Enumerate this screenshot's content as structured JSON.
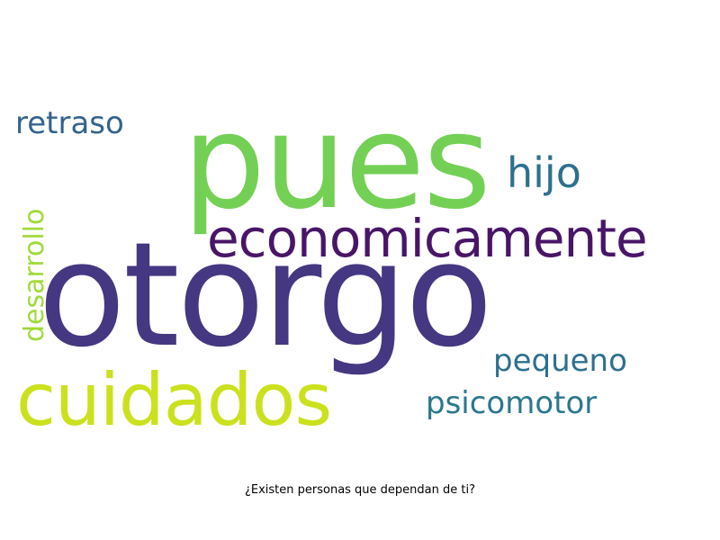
{
  "caption": "¿Existen personas que dependan de ti?",
  "words": [
    {
      "text": "pues",
      "color": "#73d055"
    },
    {
      "text": "otorgo",
      "color": "#453781"
    },
    {
      "text": "economicamente",
      "color": "#481567"
    },
    {
      "text": "cuidados",
      "color": "#cbe11e"
    },
    {
      "text": "hijo",
      "color": "#2d708e"
    },
    {
      "text": "retraso",
      "color": "#33638d"
    },
    {
      "text": "desarrollo",
      "color": "#a0da39"
    },
    {
      "text": "pequeno",
      "color": "#2d708e"
    },
    {
      "text": "psicomotor",
      "color": "#2a788e"
    }
  ]
}
